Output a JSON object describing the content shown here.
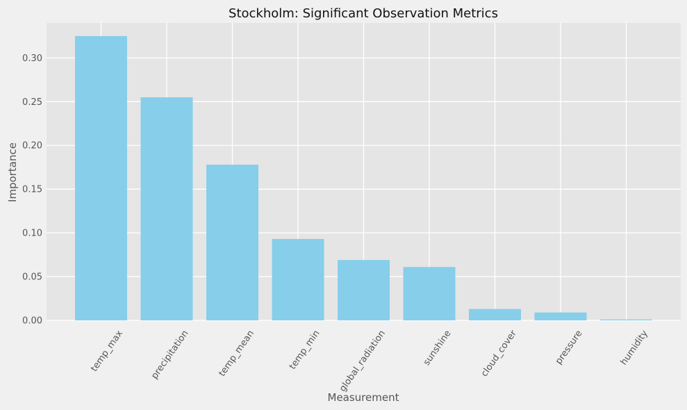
{
  "chart_data": {
    "type": "bar",
    "title": "Stockholm: Significant Observation Metrics",
    "xlabel": "Measurement",
    "ylabel": "Importance",
    "categories": [
      "temp_max",
      "precipitation",
      "temp_mean",
      "temp_min",
      "global_radiation",
      "sunshine",
      "cloud_cover",
      "pressure",
      "humidity"
    ],
    "values": [
      0.325,
      0.255,
      0.178,
      0.093,
      0.069,
      0.061,
      0.013,
      0.009,
      0.001
    ],
    "ylim": [
      0,
      0.34
    ],
    "yticks": [
      0.0,
      0.05,
      0.1,
      0.15,
      0.2,
      0.25,
      0.3
    ],
    "ytick_labels": [
      "0.00",
      "0.05",
      "0.10",
      "0.15",
      "0.20",
      "0.25",
      "0.30"
    ],
    "grid": true,
    "colors": {
      "bar": "#87ceeb",
      "plot_background": "#e5e5e5",
      "figure_background": "#f0f0f0",
      "grid": "#ffffff"
    }
  }
}
